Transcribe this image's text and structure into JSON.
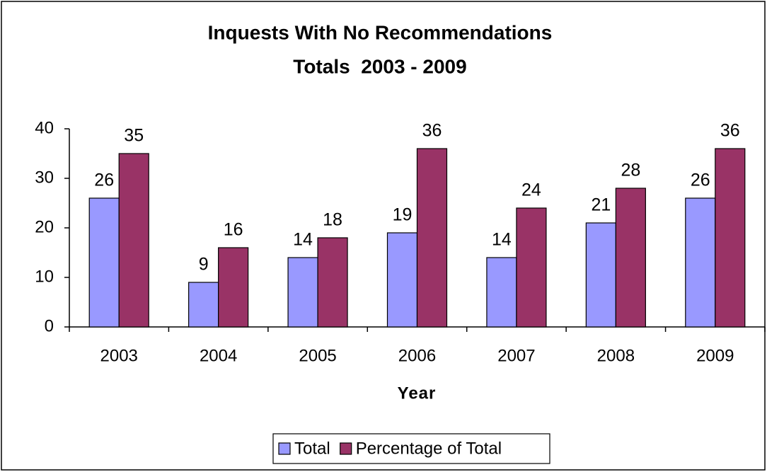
{
  "chart_data": {
    "type": "bar",
    "title": "Inquests With No Recommendations",
    "subtitle": "Totals  2003 - 2009",
    "x_label": "Year",
    "categories": [
      "2003",
      "2004",
      "2005",
      "2006",
      "2007",
      "2008",
      "2009"
    ],
    "series": [
      {
        "name": "Total",
        "color": "#9999ff",
        "values": [
          26,
          9,
          14,
          19,
          14,
          21,
          26
        ]
      },
      {
        "name": "Percentage of Total",
        "color": "#993366",
        "values": [
          35,
          16,
          18,
          36,
          24,
          28,
          36
        ]
      }
    ],
    "ylim": [
      0,
      40
    ],
    "yticks": [
      0,
      10,
      20,
      30,
      40
    ],
    "grid": false,
    "legend": "bottom"
  }
}
